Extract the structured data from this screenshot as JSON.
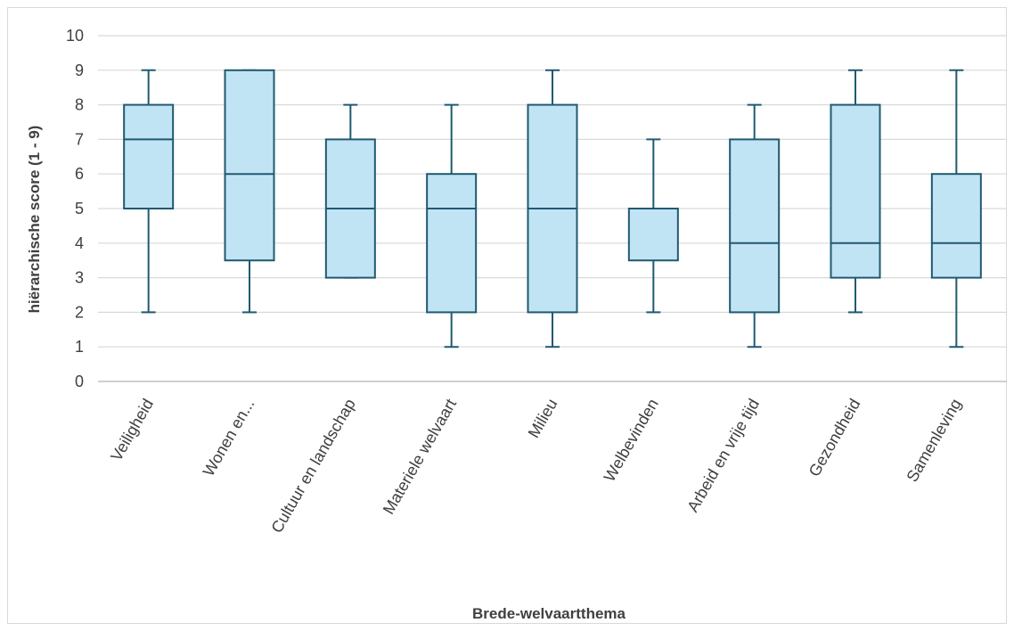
{
  "chart_data": {
    "type": "boxplot",
    "xlabel": "Brede-welvaartthema",
    "ylabel": "hiërarchische score (1 - 9)",
    "ylim": [
      0,
      10
    ],
    "yticks": [
      0,
      1,
      2,
      3,
      4,
      5,
      6,
      7,
      8,
      9,
      10
    ],
    "grid": "horizontal",
    "colors": {
      "box_fill": "#c1e4f5",
      "box_stroke": "#1f5a70",
      "grid": "#d9d9d9",
      "axis": "#bfbfbf"
    },
    "categories": [
      "Veiligheid",
      "Wonen en...",
      "Cultuur en landschap",
      "Materiele welvaart",
      "Milieu",
      "Welbevinden",
      "Arbeid en vrije tijd",
      "Gezondheid",
      "Samenleving"
    ],
    "boxes": [
      {
        "min": 2,
        "q1": 5,
        "median": 7,
        "q3": 8,
        "max": 9
      },
      {
        "min": 2,
        "q1": 3.5,
        "median": 6,
        "q3": 9,
        "max": 9
      },
      {
        "min": 3,
        "q1": 3,
        "median": 5,
        "q3": 7,
        "max": 8
      },
      {
        "min": 1,
        "q1": 2,
        "median": 5,
        "q3": 6,
        "max": 8
      },
      {
        "min": 1,
        "q1": 2,
        "median": 5,
        "q3": 8,
        "max": 9
      },
      {
        "min": 2,
        "q1": 3.5,
        "median": 5,
        "q3": 5,
        "max": 7
      },
      {
        "min": 1,
        "q1": 2,
        "median": 4,
        "q3": 7,
        "max": 8
      },
      {
        "min": 2,
        "q1": 3,
        "median": 4,
        "q3": 8,
        "max": 9
      },
      {
        "min": 1,
        "q1": 3,
        "median": 4,
        "q3": 6,
        "max": 9
      }
    ]
  }
}
